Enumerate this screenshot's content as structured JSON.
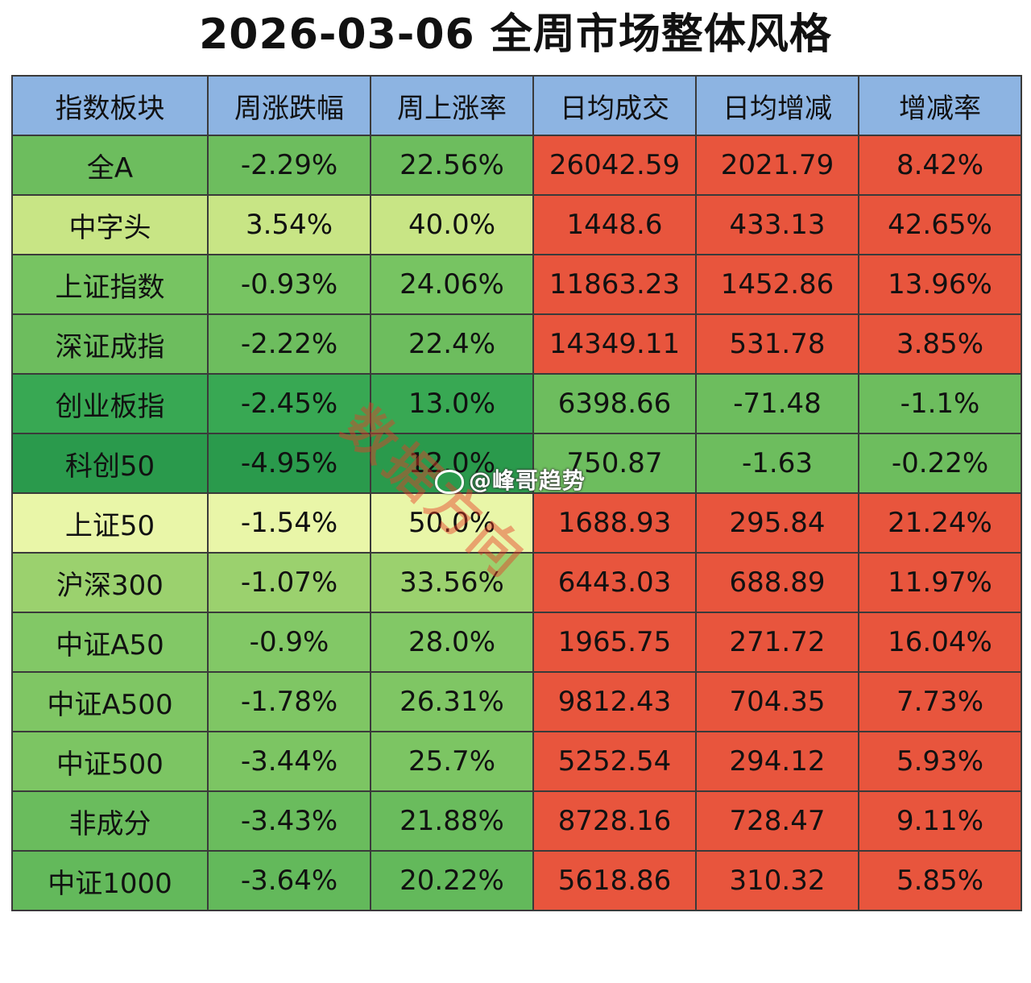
{
  "title": "2026-03-06 全周市场整体风格",
  "headers": [
    "指数板块",
    "周涨跌幅",
    "周上涨率",
    "日均成交",
    "日均增减",
    "增减率"
  ],
  "rows": [
    {
      "cells": [
        "全A",
        "-2.29%",
        "22.56%",
        "26042.59",
        "2021.79",
        "8.42%"
      ],
      "colors": [
        "#6dbd5e",
        "#6dbd5e",
        "#6dbd5e",
        "#e8553d",
        "#e8553d",
        "#e8553d"
      ]
    },
    {
      "cells": [
        "中字头",
        "3.54%",
        "40.0%",
        "1448.6",
        "433.13",
        "42.65%"
      ],
      "colors": [
        "#c8e585",
        "#c8e585",
        "#c8e585",
        "#e8553d",
        "#e8553d",
        "#e8553d"
      ]
    },
    {
      "cells": [
        "上证指数",
        "-0.93%",
        "24.06%",
        "11863.23",
        "1452.86",
        "13.96%"
      ],
      "colors": [
        "#77c462",
        "#77c462",
        "#77c462",
        "#e8553d",
        "#e8553d",
        "#e8553d"
      ]
    },
    {
      "cells": [
        "深证成指",
        "-2.22%",
        "22.4%",
        "14349.11",
        "531.78",
        "3.85%"
      ],
      "colors": [
        "#6dbd5e",
        "#6dbd5e",
        "#6dbd5e",
        "#e8553d",
        "#e8553d",
        "#e8553d"
      ]
    },
    {
      "cells": [
        "创业板指",
        "-2.45%",
        "13.0%",
        "6398.66",
        "-71.48",
        "-1.1%"
      ],
      "colors": [
        "#38a853",
        "#38a853",
        "#38a853",
        "#6dbd5e",
        "#6dbd5e",
        "#6dbd5e"
      ]
    },
    {
      "cells": [
        "科创50",
        "-4.95%",
        "12.0%",
        "750.87",
        "-1.63",
        "-0.22%"
      ],
      "colors": [
        "#2a9a4c",
        "#2a9a4c",
        "#2a9a4c",
        "#6dbd5e",
        "#6dbd5e",
        "#6dbd5e"
      ]
    },
    {
      "cells": [
        "上证50",
        "-1.54%",
        "50.0%",
        "1688.93",
        "295.84",
        "21.24%"
      ],
      "colors": [
        "#e9f6a8",
        "#e9f6a8",
        "#e9f6a8",
        "#e8553d",
        "#e8553d",
        "#e8553d"
      ]
    },
    {
      "cells": [
        "沪深300",
        "-1.07%",
        "33.56%",
        "6443.03",
        "688.89",
        "11.97%"
      ],
      "colors": [
        "#9bd16e",
        "#9bd16e",
        "#9bd16e",
        "#e8553d",
        "#e8553d",
        "#e8553d"
      ]
    },
    {
      "cells": [
        "中证A50",
        "-0.9%",
        "28.0%",
        "1965.75",
        "271.72",
        "16.04%"
      ],
      "colors": [
        "#82c866",
        "#82c866",
        "#82c866",
        "#e8553d",
        "#e8553d",
        "#e8553d"
      ]
    },
    {
      "cells": [
        "中证A500",
        "-1.78%",
        "26.31%",
        "9812.43",
        "704.35",
        "7.73%"
      ],
      "colors": [
        "#7fc664",
        "#7fc664",
        "#7fc664",
        "#e8553d",
        "#e8553d",
        "#e8553d"
      ]
    },
    {
      "cells": [
        "中证500",
        "-3.44%",
        "25.7%",
        "5252.54",
        "294.12",
        "5.93%"
      ],
      "colors": [
        "#7cc563",
        "#7cc563",
        "#7cc563",
        "#e8553d",
        "#e8553d",
        "#e8553d"
      ]
    },
    {
      "cells": [
        "非成分",
        "-3.43%",
        "21.88%",
        "8728.16",
        "728.47",
        "9.11%"
      ],
      "colors": [
        "#6abc5d",
        "#6abc5d",
        "#6abc5d",
        "#e8553d",
        "#e8553d",
        "#e8553d"
      ]
    },
    {
      "cells": [
        "中证1000",
        "-3.64%",
        "20.22%",
        "5618.86",
        "310.32",
        "5.85%"
      ],
      "colors": [
        "#63b95b",
        "#63b95b",
        "#63b95b",
        "#e8553d",
        "#e8553d",
        "#e8553d"
      ]
    }
  ],
  "watermark": "@峰哥趋势",
  "watermark_icon": "weibo-icon",
  "stamp": "数据方向"
}
